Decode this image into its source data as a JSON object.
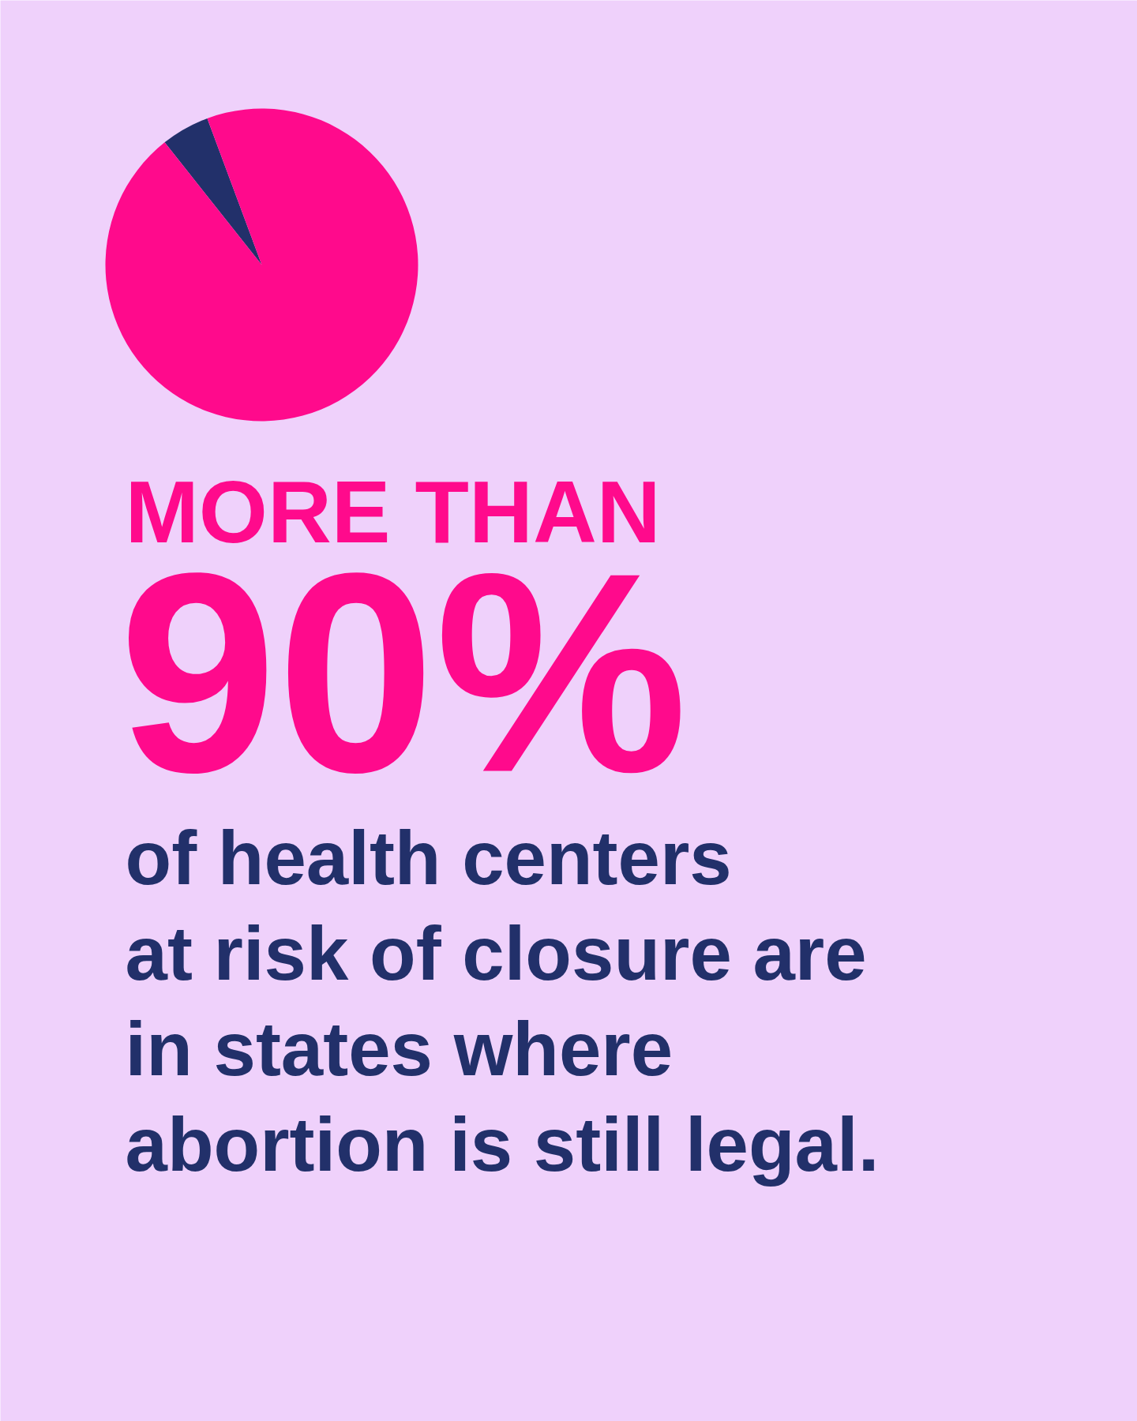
{
  "chart_data": {
    "type": "pie",
    "title": "MORE THAN",
    "subtitle": "90%",
    "categories": [
      null,
      null
    ],
    "values": [
      5,
      95
    ],
    "colors": [
      "#22306a",
      "#ff0a8c"
    ],
    "annotations": [
      "of health centers\nat risk of closure are\nin states where\nabortion is still legal."
    ]
  }
}
